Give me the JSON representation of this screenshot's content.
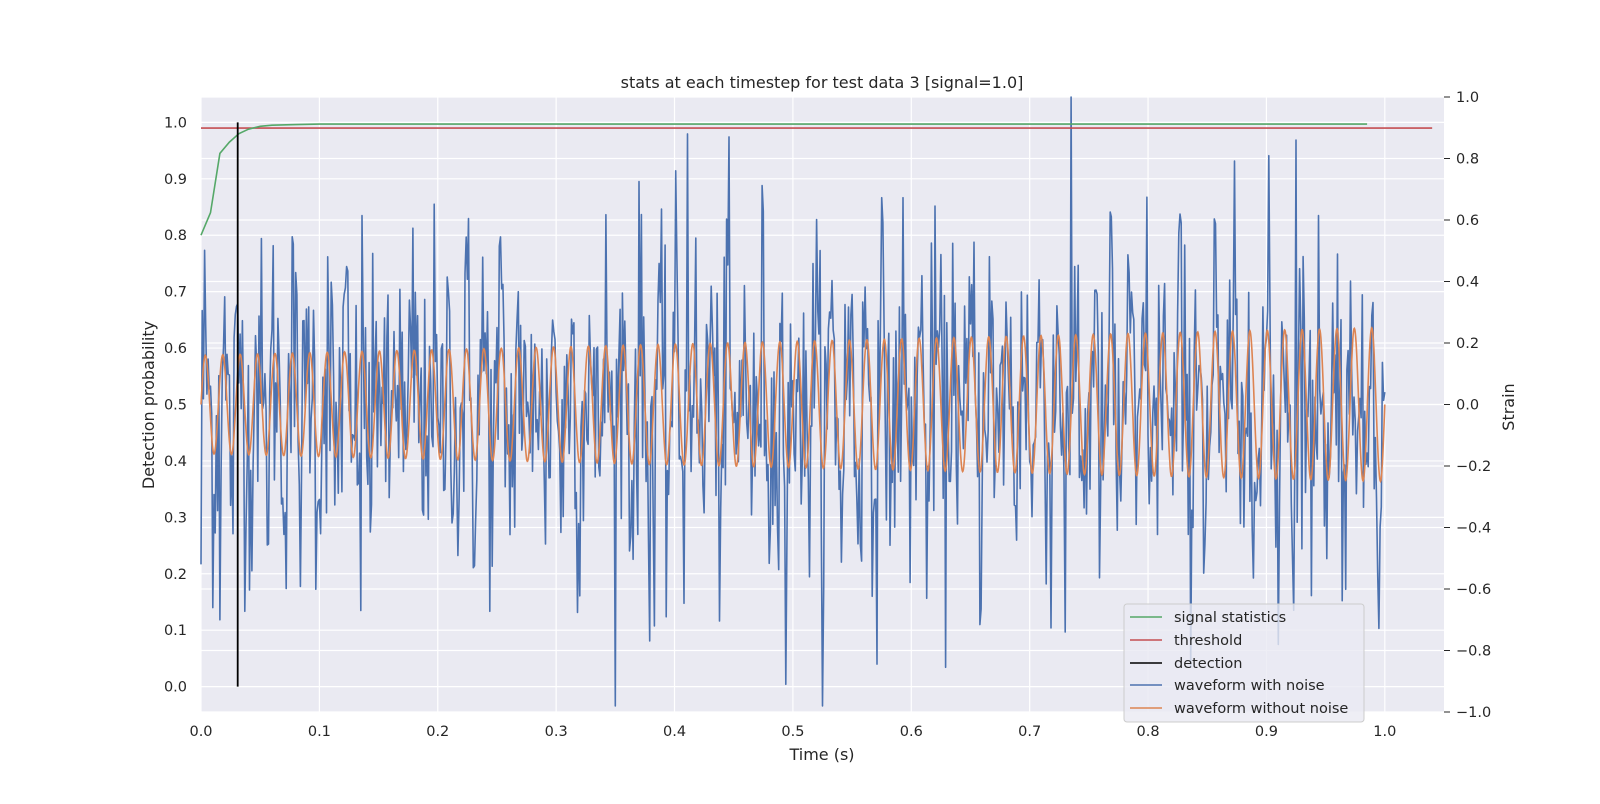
{
  "chart_data": {
    "type": "line",
    "title": "stats at each timestep for test data 3 [signal=1.0]",
    "xlabel": "Time (s)",
    "ylabel_left": "Detection probability",
    "ylabel_right": "Strain",
    "xlim": [
      0.0,
      1.05
    ],
    "ylim_left": [
      -0.045,
      1.045
    ],
    "ylim_right": [
      -1.0,
      1.0
    ],
    "x_ticks": [
      "0.0",
      "0.1",
      "0.2",
      "0.3",
      "0.4",
      "0.5",
      "0.6",
      "0.7",
      "0.8",
      "0.9",
      "1.0"
    ],
    "y_ticks_left": [
      "0.0",
      "0.1",
      "0.2",
      "0.3",
      "0.4",
      "0.5",
      "0.6",
      "0.7",
      "0.8",
      "0.9",
      "1.0"
    ],
    "y_ticks_right": [
      "−1.0",
      "−0.8",
      "−0.6",
      "−0.4",
      "−0.2",
      "0.0",
      "0.2",
      "0.4",
      "0.6",
      "0.8",
      "1.0"
    ],
    "grid": true,
    "legend_position": "lower-right",
    "colors": {
      "background": "#eaeaf2",
      "grid": "#ffffff",
      "signal_statistics": "#55a868",
      "threshold": "#c44e52",
      "detection": "#000000",
      "waveform_with_noise": "#4c72b0",
      "waveform_without_noise": "#dd8452"
    },
    "series": [
      {
        "name": "signal statistics",
        "axis": "left",
        "x": [
          0.0,
          0.008,
          0.016,
          0.024,
          0.032,
          0.04,
          0.05,
          0.06,
          0.08,
          0.1,
          0.2,
          0.4,
          0.6,
          0.8,
          0.985
        ],
        "y": [
          0.8,
          0.84,
          0.945,
          0.965,
          0.98,
          0.988,
          0.993,
          0.995,
          0.996,
          0.997,
          0.997,
          0.997,
          0.997,
          0.997,
          0.997
        ]
      },
      {
        "name": "threshold",
        "axis": "left",
        "x": [
          0.0,
          1.04
        ],
        "y": [
          0.99,
          0.99
        ]
      },
      {
        "name": "detection",
        "axis": "left",
        "x": [
          0.031,
          0.031
        ],
        "y": [
          0.0,
          1.0
        ]
      },
      {
        "name": "waveform with noise",
        "axis": "right",
        "x_range": [
          0.0,
          1.0
        ],
        "amplitude": 0.26,
        "noise_sigma": 0.25,
        "peaks": [
          {
            "x": 0.0,
            "y": -0.52
          },
          {
            "x": 0.016,
            "y": -0.7
          },
          {
            "x": 0.135,
            "y": -0.67
          },
          {
            "x": 0.383,
            "y": -0.72
          },
          {
            "x": 0.411,
            "y": 0.88
          },
          {
            "x": 0.494,
            "y": -0.91
          },
          {
            "x": 0.735,
            "y": 1.0
          },
          {
            "x": 0.73,
            "y": -0.74
          },
          {
            "x": 0.91,
            "y": -0.78
          },
          {
            "x": 0.925,
            "y": 0.86
          }
        ]
      },
      {
        "name": "waveform without noise",
        "axis": "right",
        "x_range": [
          0.0,
          1.0
        ],
        "amplitude_start": 0.16,
        "amplitude_end": 0.25,
        "cycles": 68
      }
    ]
  }
}
